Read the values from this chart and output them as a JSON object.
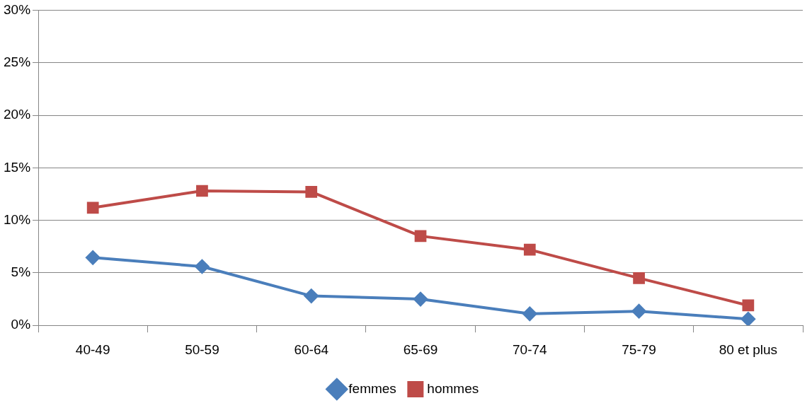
{
  "chart_data": {
    "type": "line",
    "categories": [
      "40-49",
      "50-59",
      "60-64",
      "65-69",
      "70-74",
      "75-79",
      "80 et plus"
    ],
    "series": [
      {
        "name": "femmes",
        "color": "#4a7ebb",
        "marker": "diamond",
        "values": [
          6.45,
          5.6,
          2.8,
          2.5,
          1.1,
          1.35,
          0.6
        ]
      },
      {
        "name": "hommes",
        "color": "#be4b48",
        "marker": "square",
        "values": [
          11.2,
          12.8,
          12.7,
          8.5,
          7.2,
          4.5,
          1.9
        ]
      }
    ],
    "ylim": [
      0,
      30
    ],
    "yticks": [
      {
        "value": 0,
        "label": "0%"
      },
      {
        "value": 5,
        "label": "5%"
      },
      {
        "value": 10,
        "label": "10%"
      },
      {
        "value": 15,
        "label": "15%"
      },
      {
        "value": 20,
        "label": "20%"
      },
      {
        "value": 25,
        "label": "25%"
      },
      {
        "value": 30,
        "label": "30%"
      }
    ],
    "grid": "y",
    "legend": "bottom",
    "line_style": "solid"
  }
}
